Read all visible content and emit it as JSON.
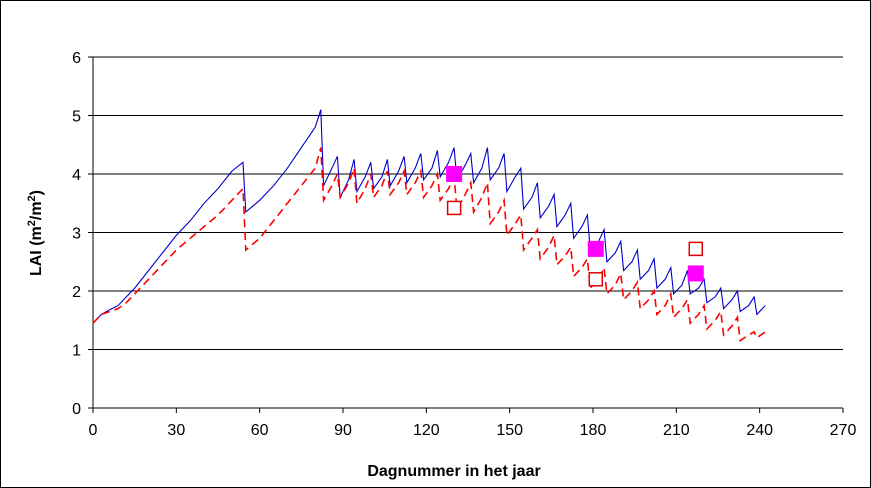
{
  "chart_data": {
    "type": "line",
    "xlabel": "Dagnummer in het jaar",
    "ylabel": "LAI (m²/m²)",
    "ylabel_parts": {
      "main": "LAI (m",
      "sup1": "2",
      "mid": "/m",
      "sup2": "2",
      "end": ")"
    },
    "xlim": [
      0,
      270
    ],
    "ylim": [
      0,
      6
    ],
    "x_ticks": [
      0,
      30,
      60,
      90,
      120,
      150,
      180,
      210,
      240,
      270
    ],
    "y_ticks": [
      0,
      1,
      2,
      3,
      4,
      5,
      6
    ],
    "grid": "horizontal",
    "legend": "none",
    "series": [
      {
        "style": "solid",
        "color": "#0000CC",
        "x": [
          0,
          3,
          6,
          9,
          12,
          15,
          20,
          25,
          30,
          35,
          40,
          45,
          50,
          54,
          55,
          60,
          65,
          70,
          75,
          80,
          82,
          83,
          86,
          88,
          89,
          92,
          94,
          95,
          98,
          100,
          101,
          104,
          106,
          107,
          110,
          112,
          113,
          116,
          118,
          119,
          122,
          124,
          125,
          128,
          130,
          131,
          134,
          136,
          137,
          140,
          142,
          143,
          146,
          148,
          149,
          152,
          154,
          155,
          158,
          160,
          161,
          164,
          166,
          167,
          170,
          172,
          173,
          176,
          178,
          179,
          182,
          184,
          185,
          188,
          190,
          191,
          194,
          196,
          197,
          200,
          202,
          203,
          206,
          208,
          209,
          212,
          214,
          215,
          218,
          220,
          221,
          224,
          226,
          227,
          230,
          232,
          233,
          236,
          238,
          239,
          242
        ],
        "y": [
          1.45,
          1.6,
          1.68,
          1.75,
          1.9,
          2.05,
          2.35,
          2.65,
          2.95,
          3.2,
          3.5,
          3.75,
          4.05,
          4.2,
          3.35,
          3.55,
          3.8,
          4.1,
          4.45,
          4.8,
          5.1,
          3.8,
          4.1,
          4.3,
          3.6,
          3.9,
          4.25,
          3.7,
          3.95,
          4.2,
          3.75,
          3.95,
          4.25,
          3.8,
          4.05,
          4.3,
          3.85,
          4.1,
          4.35,
          3.9,
          4.1,
          4.4,
          3.95,
          4.2,
          4.45,
          3.9,
          4.15,
          4.35,
          3.85,
          4.1,
          4.45,
          3.9,
          4.1,
          4.35,
          3.7,
          3.95,
          4.1,
          3.4,
          3.6,
          3.85,
          3.25,
          3.45,
          3.65,
          3.1,
          3.3,
          3.5,
          2.9,
          3.1,
          3.3,
          2.7,
          2.85,
          3.05,
          2.5,
          2.65,
          2.85,
          2.35,
          2.5,
          2.7,
          2.2,
          2.35,
          2.55,
          2.05,
          2.2,
          2.4,
          1.95,
          2.1,
          2.35,
          1.95,
          2.05,
          2.2,
          1.8,
          1.9,
          2.05,
          1.7,
          1.85,
          2.0,
          1.65,
          1.75,
          1.9,
          1.6,
          1.75
        ]
      },
      {
        "style": "dashed",
        "color": "#FF0000",
        "x": [
          0,
          3,
          6,
          9,
          12,
          15,
          20,
          25,
          30,
          35,
          40,
          45,
          50,
          54,
          55,
          60,
          65,
          70,
          75,
          80,
          82,
          83,
          86,
          88,
          89,
          92,
          94,
          95,
          98,
          100,
          101,
          104,
          106,
          107,
          110,
          112,
          113,
          116,
          118,
          119,
          122,
          124,
          125,
          128,
          130,
          131,
          134,
          136,
          137,
          140,
          142,
          143,
          146,
          148,
          149,
          152,
          154,
          155,
          158,
          160,
          161,
          164,
          166,
          167,
          170,
          172,
          173,
          176,
          178,
          179,
          182,
          184,
          185,
          188,
          190,
          191,
          194,
          196,
          197,
          200,
          202,
          203,
          206,
          208,
          209,
          212,
          214,
          215,
          218,
          220,
          221,
          224,
          226,
          227,
          230,
          232,
          233,
          236,
          238,
          239,
          242
        ],
        "y": [
          1.45,
          1.6,
          1.65,
          1.7,
          1.8,
          1.95,
          2.2,
          2.45,
          2.7,
          2.9,
          3.1,
          3.3,
          3.55,
          3.75,
          2.7,
          2.9,
          3.2,
          3.5,
          3.8,
          4.1,
          4.45,
          3.55,
          3.8,
          4.0,
          3.6,
          3.85,
          4.1,
          3.5,
          3.75,
          4.0,
          3.6,
          3.8,
          4.05,
          3.65,
          3.85,
          4.05,
          3.65,
          3.85,
          4.05,
          3.6,
          3.8,
          4.0,
          3.55,
          3.75,
          3.95,
          3.4,
          3.65,
          3.85,
          3.35,
          3.6,
          3.85,
          3.15,
          3.35,
          3.55,
          2.95,
          3.15,
          3.3,
          2.7,
          2.9,
          3.05,
          2.55,
          2.75,
          2.95,
          2.45,
          2.6,
          2.75,
          2.25,
          2.4,
          2.55,
          2.05,
          2.2,
          2.4,
          1.95,
          2.1,
          2.3,
          1.85,
          2.0,
          2.15,
          1.7,
          1.85,
          2.0,
          1.6,
          1.75,
          1.95,
          1.55,
          1.7,
          1.85,
          1.45,
          1.6,
          1.75,
          1.35,
          1.5,
          1.65,
          1.25,
          1.4,
          1.55,
          1.15,
          1.25,
          1.3,
          1.2,
          1.3
        ]
      },
      {
        "style": "marker-filled-square",
        "color": "#FF00FF",
        "x": [
          130,
          181,
          217
        ],
        "y": [
          4.0,
          2.72,
          2.3
        ]
      },
      {
        "style": "marker-open-square",
        "color": "#DD0000",
        "x": [
          130,
          181,
          217
        ],
        "y": [
          3.42,
          2.2,
          2.72
        ]
      }
    ]
  }
}
